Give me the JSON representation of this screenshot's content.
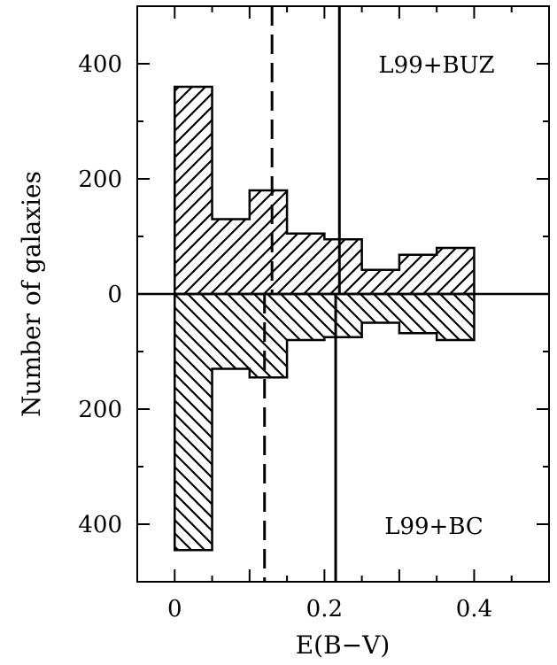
{
  "chart_data": {
    "type": "bar",
    "subtype": "back-to-back histogram",
    "xlabel": "E(B−V)",
    "ylabel": "Number of galaxies",
    "xlim": [
      -0.05,
      0.5
    ],
    "ylim": [
      -500,
      500
    ],
    "x_ticks": [
      {
        "value": 0,
        "label": "0"
      },
      {
        "value": 0.2,
        "label": "0.2"
      },
      {
        "value": 0.4,
        "label": "0.4"
      }
    ],
    "y_ticks": [
      {
        "value": 400,
        "label": "400"
      },
      {
        "value": 200,
        "label": "200"
      },
      {
        "value": 0,
        "label": "0"
      },
      {
        "value": -200,
        "label": "200"
      },
      {
        "value": -400,
        "label": "400"
      }
    ],
    "bin_edges": [
      0,
      0.05,
      0.1,
      0.15,
      0.2,
      0.25,
      0.3,
      0.35,
      0.4
    ],
    "series": [
      {
        "name": "L99+BUZ",
        "direction": "up",
        "hatch": "forward",
        "values": [
          360,
          130,
          180,
          105,
          95,
          42,
          68,
          80
        ]
      },
      {
        "name": "L99+BC",
        "direction": "down",
        "hatch": "backward",
        "values": [
          445,
          130,
          145,
          80,
          75,
          50,
          68,
          80
        ]
      }
    ],
    "reference_lines": [
      {
        "style": "dashed",
        "x": 0.13,
        "range": "upper"
      },
      {
        "style": "dashed",
        "x": 0.12,
        "range": "lower"
      },
      {
        "style": "solid",
        "x": 0.22,
        "range": "upper"
      },
      {
        "style": "solid",
        "x": 0.215,
        "range": "lower"
      }
    ],
    "annotations": [
      {
        "text": "L99+BUZ",
        "position": "top-right"
      },
      {
        "text": "L99+BC",
        "position": "bottom-right"
      }
    ],
    "grid": false
  }
}
